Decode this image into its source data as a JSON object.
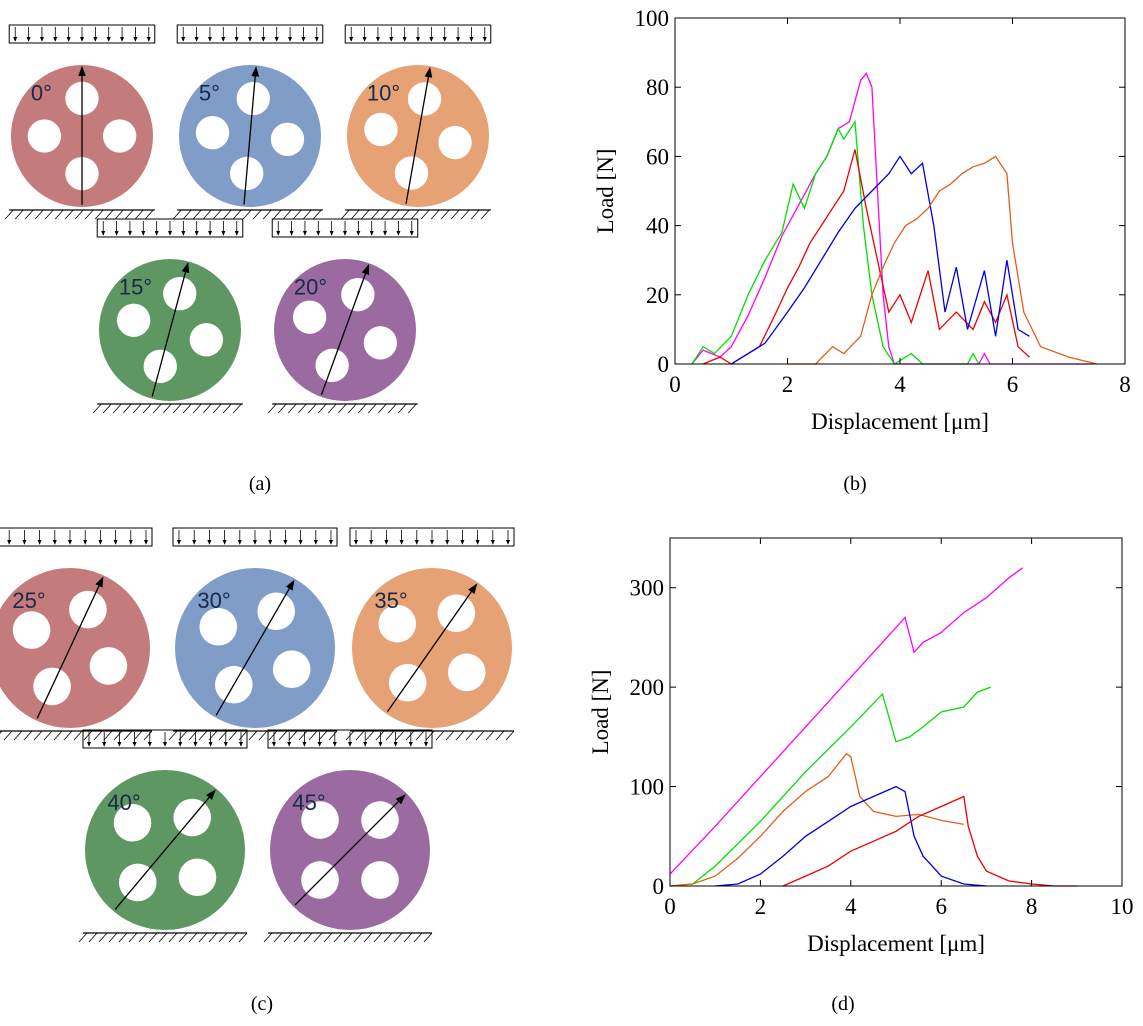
{
  "diagrams": [
    {
      "disks": [
        {
          "label": "0°",
          "color": "#c47b7b"
        },
        {
          "label": "5°",
          "color": "#809dc7"
        },
        {
          "label": "10°",
          "color": "#e6a274"
        },
        {
          "label": "15°",
          "color": "#5f9762"
        },
        {
          "label": "20°",
          "color": "#9a6aa1"
        }
      ]
    },
    {
      "disks": [
        {
          "label": "25°",
          "color": "#c47b7b"
        },
        {
          "label": "30°",
          "color": "#809dc7"
        },
        {
          "label": "35°",
          "color": "#e6a274"
        },
        {
          "label": "40°",
          "color": "#5f9762"
        },
        {
          "label": "45°",
          "color": "#9a6aa1"
        }
      ]
    }
  ],
  "captions": [
    "(a)",
    "(b)",
    "(c)",
    "(d)"
  ],
  "chart_data": [
    {
      "type": "line",
      "x_label": "Displacement [μm]",
      "y_label": "Load [N]",
      "xlim": [
        0,
        8
      ],
      "ylim": [
        0,
        100
      ],
      "xticks": [
        0,
        2,
        4,
        6,
        8
      ],
      "yticks": [
        0,
        20,
        40,
        60,
        80,
        100
      ],
      "series": [
        {
          "color": "#ff00ff",
          "x": [
            0.3,
            0.5,
            0.8,
            1.0,
            1.3,
            1.6,
            1.9,
            2.2,
            2.5,
            2.7,
            2.9,
            3.1,
            3.3,
            3.4,
            3.5,
            3.6,
            3.7,
            3.8,
            3.9,
            4.5,
            5.4,
            5.5,
            5.6,
            7.4
          ],
          "values": [
            0,
            4,
            2,
            5,
            14,
            25,
            37,
            46,
            55,
            60,
            68,
            70,
            82,
            84,
            80,
            50,
            20,
            5,
            0,
            0,
            0,
            3,
            0,
            0
          ]
        },
        {
          "color": "#00e000",
          "x": [
            0.3,
            0.5,
            0.7,
            1.0,
            1.3,
            1.6,
            1.9,
            2.1,
            2.3,
            2.5,
            2.7,
            2.9,
            3.0,
            3.2,
            3.35,
            3.5,
            3.7,
            3.9,
            4.2,
            4.4,
            5.2,
            5.3,
            5.4
          ],
          "values": [
            0,
            5,
            3,
            8,
            20,
            30,
            38,
            52,
            45,
            55,
            60,
            68,
            65,
            70,
            40,
            20,
            5,
            0,
            3,
            0,
            0,
            3,
            0
          ]
        },
        {
          "color": "#ee0000",
          "x": [
            0.5,
            0.8,
            1.0,
            1.2,
            1.5,
            1.8,
            2.0,
            2.2,
            2.4,
            2.6,
            2.8,
            3.0,
            3.2,
            3.4,
            3.6,
            3.8,
            4.0,
            4.2,
            4.5,
            4.7,
            5.0,
            5.3,
            5.5,
            5.7,
            5.9,
            6.1,
            6.3
          ],
          "values": [
            0,
            2,
            0,
            2,
            5,
            15,
            22,
            28,
            35,
            40,
            45,
            50,
            62,
            45,
            30,
            15,
            20,
            12,
            27,
            10,
            15,
            10,
            18,
            12,
            20,
            5,
            2
          ]
        },
        {
          "color": "#0000dd",
          "x": [
            1.0,
            1.3,
            1.6,
            2.0,
            2.3,
            2.6,
            2.9,
            3.2,
            3.5,
            3.8,
            4.0,
            4.2,
            4.4,
            4.6,
            4.8,
            5.0,
            5.2,
            5.5,
            5.7,
            5.9,
            6.1,
            6.3
          ],
          "values": [
            0,
            3,
            6,
            15,
            22,
            30,
            38,
            45,
            50,
            55,
            60,
            55,
            58,
            40,
            15,
            28,
            10,
            27,
            8,
            30,
            10,
            8
          ]
        },
        {
          "color": "#e0601a",
          "x": [
            2.0,
            2.5,
            2.8,
            3.0,
            3.3,
            3.5,
            3.7,
            3.9,
            4.1,
            4.3,
            4.5,
            4.7,
            4.9,
            5.1,
            5.3,
            5.5,
            5.7,
            5.9,
            6.0,
            6.2,
            6.5,
            7.0,
            7.5
          ],
          "values": [
            0,
            0,
            5,
            3,
            8,
            20,
            28,
            35,
            40,
            42,
            45,
            50,
            52,
            55,
            57,
            58,
            60,
            55,
            35,
            15,
            5,
            2,
            0
          ]
        }
      ]
    },
    {
      "type": "line",
      "x_label": "Displacement [μm]",
      "y_label": "Load [N]",
      "xlim": [
        0,
        10
      ],
      "ylim": [
        0,
        350
      ],
      "xticks": [
        0,
        2,
        4,
        6,
        8,
        10
      ],
      "yticks": [
        0,
        100,
        200,
        300
      ],
      "series": [
        {
          "color": "#ff00ff",
          "x": [
            0,
            1,
            2,
            3,
            4,
            5,
            5.2,
            5.4,
            5.6,
            6,
            6.5,
            7,
            7.5,
            7.8
          ],
          "values": [
            12,
            60,
            110,
            160,
            210,
            260,
            270,
            235,
            245,
            255,
            275,
            290,
            310,
            320
          ]
        },
        {
          "color": "#00e000",
          "x": [
            0,
            0.5,
            1,
            2,
            3,
            4,
            4.7,
            5,
            5.3,
            5.6,
            6,
            6.5,
            6.8,
            7.1
          ],
          "values": [
            0,
            2,
            20,
            65,
            115,
            160,
            193,
            145,
            150,
            160,
            175,
            180,
            195,
            200
          ]
        },
        {
          "color": "#e0601a",
          "x": [
            0,
            0.5,
            1,
            1.5,
            2,
            2.5,
            3,
            3.5,
            3.9,
            4,
            4.2,
            4.5,
            5,
            5.5,
            6,
            6.5
          ],
          "values": [
            0,
            2,
            10,
            28,
            50,
            75,
            95,
            110,
            133,
            130,
            90,
            75,
            70,
            72,
            66,
            62
          ]
        },
        {
          "color": "#0000dd",
          "x": [
            1,
            1.5,
            2,
            2.5,
            3,
            3.5,
            4,
            4.5,
            5,
            5.2,
            5.4,
            5.6,
            5.8,
            6,
            6.5,
            7
          ],
          "values": [
            0,
            2,
            12,
            30,
            50,
            65,
            80,
            90,
            100,
            95,
            50,
            30,
            20,
            10,
            2,
            0
          ]
        },
        {
          "color": "#ee0000",
          "x": [
            2.5,
            3,
            3.5,
            4,
            4.5,
            5,
            5.5,
            6,
            6.5,
            6.6,
            6.8,
            7,
            7.5,
            8,
            8.5,
            9
          ],
          "values": [
            0,
            10,
            20,
            35,
            45,
            55,
            70,
            80,
            90,
            60,
            30,
            15,
            5,
            2,
            0,
            0
          ]
        }
      ]
    }
  ]
}
